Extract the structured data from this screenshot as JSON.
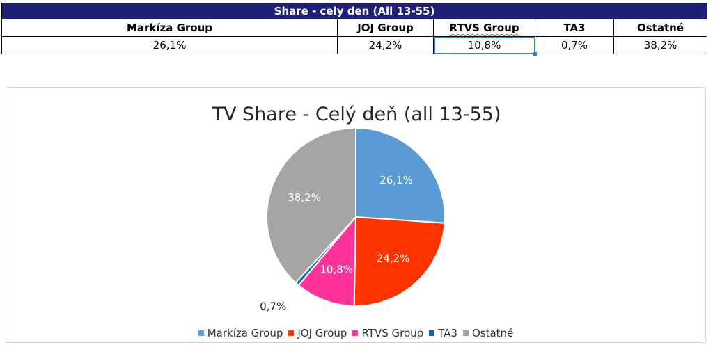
{
  "table": {
    "title_prefix": "Share - cely den (All 13-55)",
    "headers": [
      "Markíza Group",
      "JOJ Group",
      "RTVS Group",
      "TA3",
      "Ostatné"
    ],
    "values": [
      "26,1%",
      "24,2%",
      "10,8%",
      "0,7%",
      "38,2%"
    ],
    "title_color": "#1f1f78"
  },
  "chart_data": {
    "type": "pie",
    "title": "TV Share - Celý deň (all 13-55)",
    "categories": [
      "Markíza Group",
      "JOJ Group",
      "RTVS Group",
      "TA3",
      "Ostatné"
    ],
    "values": [
      26.1,
      24.2,
      10.8,
      0.7,
      38.2
    ],
    "labels": [
      "26,1%",
      "24,2%",
      "10,8%",
      "0,7%",
      "38,2%"
    ],
    "colors": [
      "#5b9bd5",
      "#ff3300",
      "#ff3399",
      "#0e6bb3",
      "#a5a5a5"
    ],
    "legend_position": "bottom"
  }
}
